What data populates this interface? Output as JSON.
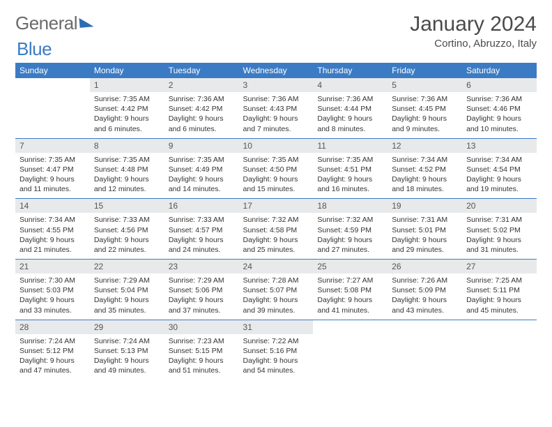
{
  "brand": {
    "part1": "General",
    "part2": "Blue"
  },
  "title": {
    "month": "January 2024",
    "location": "Cortino, Abruzzo, Italy"
  },
  "style": {
    "header_bg": "#3b7bc4",
    "header_fg": "#ffffff",
    "daynum_bg": "#e8e9ea",
    "border_color": "#3b7bc4",
    "page_bg": "#ffffff",
    "text_color": "#333333",
    "title_color": "#4a4a4a"
  },
  "weekdays": [
    "Sunday",
    "Monday",
    "Tuesday",
    "Wednesday",
    "Thursday",
    "Friday",
    "Saturday"
  ],
  "weeks": [
    [
      {
        "n": "",
        "sunrise": "",
        "sunset": "",
        "daylight": ""
      },
      {
        "n": "1",
        "sunrise": "Sunrise: 7:35 AM",
        "sunset": "Sunset: 4:42 PM",
        "daylight": "Daylight: 9 hours and 6 minutes."
      },
      {
        "n": "2",
        "sunrise": "Sunrise: 7:36 AM",
        "sunset": "Sunset: 4:42 PM",
        "daylight": "Daylight: 9 hours and 6 minutes."
      },
      {
        "n": "3",
        "sunrise": "Sunrise: 7:36 AM",
        "sunset": "Sunset: 4:43 PM",
        "daylight": "Daylight: 9 hours and 7 minutes."
      },
      {
        "n": "4",
        "sunrise": "Sunrise: 7:36 AM",
        "sunset": "Sunset: 4:44 PM",
        "daylight": "Daylight: 9 hours and 8 minutes."
      },
      {
        "n": "5",
        "sunrise": "Sunrise: 7:36 AM",
        "sunset": "Sunset: 4:45 PM",
        "daylight": "Daylight: 9 hours and 9 minutes."
      },
      {
        "n": "6",
        "sunrise": "Sunrise: 7:36 AM",
        "sunset": "Sunset: 4:46 PM",
        "daylight": "Daylight: 9 hours and 10 minutes."
      }
    ],
    [
      {
        "n": "7",
        "sunrise": "Sunrise: 7:35 AM",
        "sunset": "Sunset: 4:47 PM",
        "daylight": "Daylight: 9 hours and 11 minutes."
      },
      {
        "n": "8",
        "sunrise": "Sunrise: 7:35 AM",
        "sunset": "Sunset: 4:48 PM",
        "daylight": "Daylight: 9 hours and 12 minutes."
      },
      {
        "n": "9",
        "sunrise": "Sunrise: 7:35 AM",
        "sunset": "Sunset: 4:49 PM",
        "daylight": "Daylight: 9 hours and 14 minutes."
      },
      {
        "n": "10",
        "sunrise": "Sunrise: 7:35 AM",
        "sunset": "Sunset: 4:50 PM",
        "daylight": "Daylight: 9 hours and 15 minutes."
      },
      {
        "n": "11",
        "sunrise": "Sunrise: 7:35 AM",
        "sunset": "Sunset: 4:51 PM",
        "daylight": "Daylight: 9 hours and 16 minutes."
      },
      {
        "n": "12",
        "sunrise": "Sunrise: 7:34 AM",
        "sunset": "Sunset: 4:52 PM",
        "daylight": "Daylight: 9 hours and 18 minutes."
      },
      {
        "n": "13",
        "sunrise": "Sunrise: 7:34 AM",
        "sunset": "Sunset: 4:54 PM",
        "daylight": "Daylight: 9 hours and 19 minutes."
      }
    ],
    [
      {
        "n": "14",
        "sunrise": "Sunrise: 7:34 AM",
        "sunset": "Sunset: 4:55 PM",
        "daylight": "Daylight: 9 hours and 21 minutes."
      },
      {
        "n": "15",
        "sunrise": "Sunrise: 7:33 AM",
        "sunset": "Sunset: 4:56 PM",
        "daylight": "Daylight: 9 hours and 22 minutes."
      },
      {
        "n": "16",
        "sunrise": "Sunrise: 7:33 AM",
        "sunset": "Sunset: 4:57 PM",
        "daylight": "Daylight: 9 hours and 24 minutes."
      },
      {
        "n": "17",
        "sunrise": "Sunrise: 7:32 AM",
        "sunset": "Sunset: 4:58 PM",
        "daylight": "Daylight: 9 hours and 25 minutes."
      },
      {
        "n": "18",
        "sunrise": "Sunrise: 7:32 AM",
        "sunset": "Sunset: 4:59 PM",
        "daylight": "Daylight: 9 hours and 27 minutes."
      },
      {
        "n": "19",
        "sunrise": "Sunrise: 7:31 AM",
        "sunset": "Sunset: 5:01 PM",
        "daylight": "Daylight: 9 hours and 29 minutes."
      },
      {
        "n": "20",
        "sunrise": "Sunrise: 7:31 AM",
        "sunset": "Sunset: 5:02 PM",
        "daylight": "Daylight: 9 hours and 31 minutes."
      }
    ],
    [
      {
        "n": "21",
        "sunrise": "Sunrise: 7:30 AM",
        "sunset": "Sunset: 5:03 PM",
        "daylight": "Daylight: 9 hours and 33 minutes."
      },
      {
        "n": "22",
        "sunrise": "Sunrise: 7:29 AM",
        "sunset": "Sunset: 5:04 PM",
        "daylight": "Daylight: 9 hours and 35 minutes."
      },
      {
        "n": "23",
        "sunrise": "Sunrise: 7:29 AM",
        "sunset": "Sunset: 5:06 PM",
        "daylight": "Daylight: 9 hours and 37 minutes."
      },
      {
        "n": "24",
        "sunrise": "Sunrise: 7:28 AM",
        "sunset": "Sunset: 5:07 PM",
        "daylight": "Daylight: 9 hours and 39 minutes."
      },
      {
        "n": "25",
        "sunrise": "Sunrise: 7:27 AM",
        "sunset": "Sunset: 5:08 PM",
        "daylight": "Daylight: 9 hours and 41 minutes."
      },
      {
        "n": "26",
        "sunrise": "Sunrise: 7:26 AM",
        "sunset": "Sunset: 5:09 PM",
        "daylight": "Daylight: 9 hours and 43 minutes."
      },
      {
        "n": "27",
        "sunrise": "Sunrise: 7:25 AM",
        "sunset": "Sunset: 5:11 PM",
        "daylight": "Daylight: 9 hours and 45 minutes."
      }
    ],
    [
      {
        "n": "28",
        "sunrise": "Sunrise: 7:24 AM",
        "sunset": "Sunset: 5:12 PM",
        "daylight": "Daylight: 9 hours and 47 minutes."
      },
      {
        "n": "29",
        "sunrise": "Sunrise: 7:24 AM",
        "sunset": "Sunset: 5:13 PM",
        "daylight": "Daylight: 9 hours and 49 minutes."
      },
      {
        "n": "30",
        "sunrise": "Sunrise: 7:23 AM",
        "sunset": "Sunset: 5:15 PM",
        "daylight": "Daylight: 9 hours and 51 minutes."
      },
      {
        "n": "31",
        "sunrise": "Sunrise: 7:22 AM",
        "sunset": "Sunset: 5:16 PM",
        "daylight": "Daylight: 9 hours and 54 minutes."
      },
      {
        "n": "",
        "sunrise": "",
        "sunset": "",
        "daylight": ""
      },
      {
        "n": "",
        "sunrise": "",
        "sunset": "",
        "daylight": ""
      },
      {
        "n": "",
        "sunrise": "",
        "sunset": "",
        "daylight": ""
      }
    ]
  ]
}
